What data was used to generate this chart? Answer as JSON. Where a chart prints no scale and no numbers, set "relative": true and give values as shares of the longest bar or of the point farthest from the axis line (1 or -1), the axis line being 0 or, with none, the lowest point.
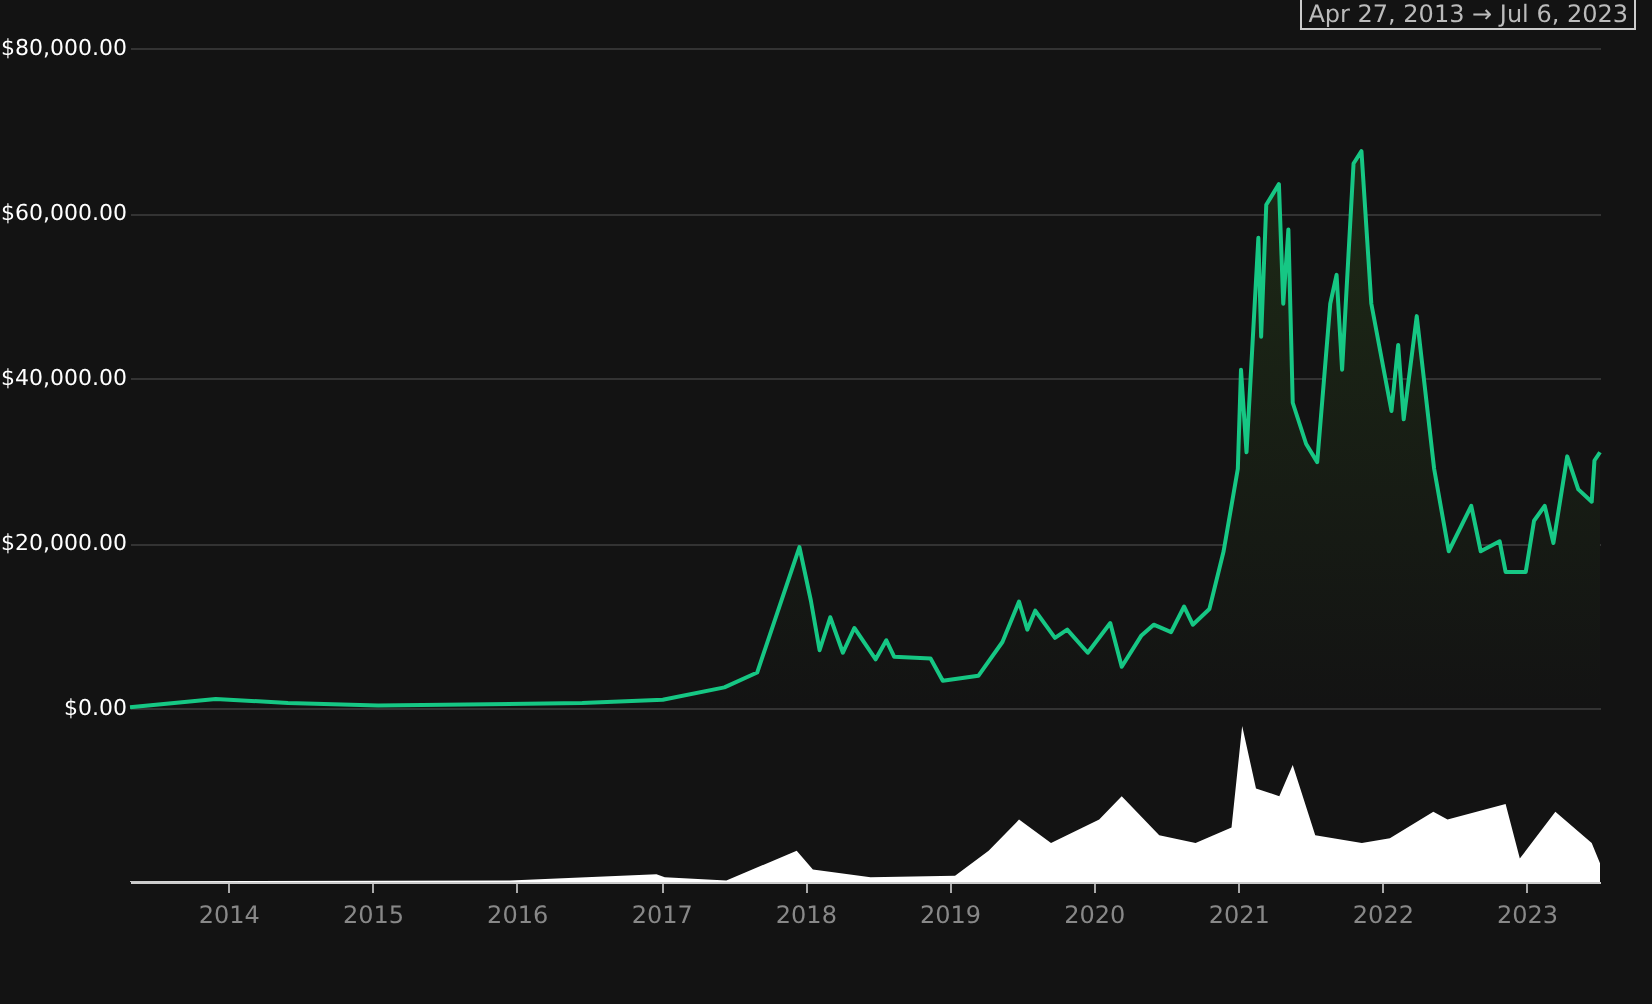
{
  "chart_data": [
    {
      "type": "area",
      "annotations": [
        "Apr 27, 2013 → Jul 6, 2023"
      ],
      "ylim": [
        0,
        80000
      ],
      "yticks": [
        {
          "value": 0,
          "label": "$0.00"
        },
        {
          "value": 20000,
          "label": "$20,000.00"
        },
        {
          "value": 40000,
          "label": "$40,000.00"
        },
        {
          "value": 60000,
          "label": "$60,000.00"
        },
        {
          "value": 80000,
          "label": "$80,000.00"
        }
      ],
      "grid": "y",
      "tick_labels": "y",
      "xlim": [
        "2013-04-27",
        "2023-07-06"
      ],
      "x": [
        "2013-04-27",
        "2013-11-30",
        "2014-06-01",
        "2015-01-15",
        "2016-06-15",
        "2017-01-05",
        "2017-06-10",
        "2017-09-01",
        "2017-12-17",
        "2018-01-15",
        "2018-02-06",
        "2018-03-05",
        "2018-04-06",
        "2018-05-05",
        "2018-06-28",
        "2018-07-25",
        "2018-08-14",
        "2018-11-14",
        "2018-12-15",
        "2019-03-15",
        "2019-05-15",
        "2019-06-26",
        "2019-07-17",
        "2019-08-06",
        "2019-09-25",
        "2019-10-26",
        "2019-12-17",
        "2020-02-12",
        "2020-03-12",
        "2020-05-01",
        "2020-06-01",
        "2020-07-15",
        "2020-08-17",
        "2020-09-08",
        "2020-10-20",
        "2020-11-25",
        "2020-12-31",
        "2021-01-08",
        "2021-01-22",
        "2021-02-21",
        "2021-02-28",
        "2021-03-13",
        "2021-04-14",
        "2021-04-25",
        "2021-05-08",
        "2021-05-19",
        "2021-06-22",
        "2021-07-20",
        "2021-08-22",
        "2021-09-07",
        "2021-09-21",
        "2021-10-20",
        "2021-11-09",
        "2021-12-04",
        "2022-01-24",
        "2022-02-10",
        "2022-02-24",
        "2022-03-29",
        "2022-05-12",
        "2022-06-18",
        "2022-08-14",
        "2022-09-07",
        "2022-10-25",
        "2022-11-09",
        "2022-12-30",
        "2023-01-20",
        "2023-02-16",
        "2023-03-10",
        "2023-04-14",
        "2023-05-12",
        "2023-06-15",
        "2023-06-22",
        "2023-07-06"
      ],
      "series": [
        {
          "color": "#16c784",
          "values": [
            100,
            1100,
            600,
            300,
            600,
            1000,
            2500,
            4300,
            19500,
            13000,
            7000,
            11000,
            6700,
            9700,
            5900,
            8200,
            6200,
            6000,
            3300,
            3900,
            8000,
            12900,
            9500,
            11800,
            8500,
            9500,
            6700,
            10300,
            5000,
            8800,
            10100,
            9200,
            12300,
            10100,
            12000,
            19000,
            29000,
            41000,
            31000,
            57000,
            45000,
            61000,
            63500,
            49000,
            58000,
            37000,
            32000,
            29800,
            49000,
            52500,
            41000,
            66000,
            67500,
            49000,
            36000,
            44000,
            35000,
            47500,
            29000,
            19000,
            24500,
            19000,
            20200,
            16500,
            16500,
            22700,
            24500,
            20000,
            30500,
            26500,
            25000,
            30000,
            31000
          ]
        }
      ]
    },
    {
      "type": "area",
      "relative": true,
      "tick_labels": "x",
      "xlim": [
        "2013-04-27",
        "2023-07-06"
      ],
      "xticks": [
        {
          "value": "2014",
          "label": "2014"
        },
        {
          "value": "2015",
          "label": "2015"
        },
        {
          "value": "2016",
          "label": "2016"
        },
        {
          "value": "2017",
          "label": "2017"
        },
        {
          "value": "2018",
          "label": "2018"
        },
        {
          "value": "2019",
          "label": "2019"
        },
        {
          "value": "2020",
          "label": "2020"
        },
        {
          "value": "2021",
          "label": "2021"
        },
        {
          "value": "2022",
          "label": "2022"
        },
        {
          "value": "2023",
          "label": "2023"
        }
      ],
      "x": [
        "2013-04-27",
        "2015-12-15",
        "2016-12-20",
        "2017-01-10",
        "2017-06-15",
        "2017-12-10",
        "2018-01-20",
        "2018-06-15",
        "2019-01-15",
        "2019-04-10",
        "2019-06-26",
        "2019-09-15",
        "2020-01-15",
        "2020-03-12",
        "2020-06-15",
        "2020-09-15",
        "2020-12-15",
        "2021-01-11",
        "2021-02-15",
        "2021-04-15",
        "2021-05-19",
        "2021-07-15",
        "2021-11-10",
        "2022-01-20",
        "2022-05-10",
        "2022-06-15",
        "2022-11-09",
        "2022-12-15",
        "2023-03-15",
        "2023-06-15",
        "2023-07-06"
      ],
      "series": [
        {
          "color": "#ffffff",
          "values": [
            0.005,
            0.01,
            0.05,
            0.03,
            0.01,
            0.2,
            0.08,
            0.03,
            0.04,
            0.2,
            0.4,
            0.25,
            0.4,
            0.55,
            0.3,
            0.25,
            0.35,
            1,
            0.6,
            0.55,
            0.75,
            0.3,
            0.25,
            0.28,
            0.45,
            0.4,
            0.5,
            0.15,
            0.45,
            0.25,
            0.12
          ]
        }
      ]
    }
  ]
}
